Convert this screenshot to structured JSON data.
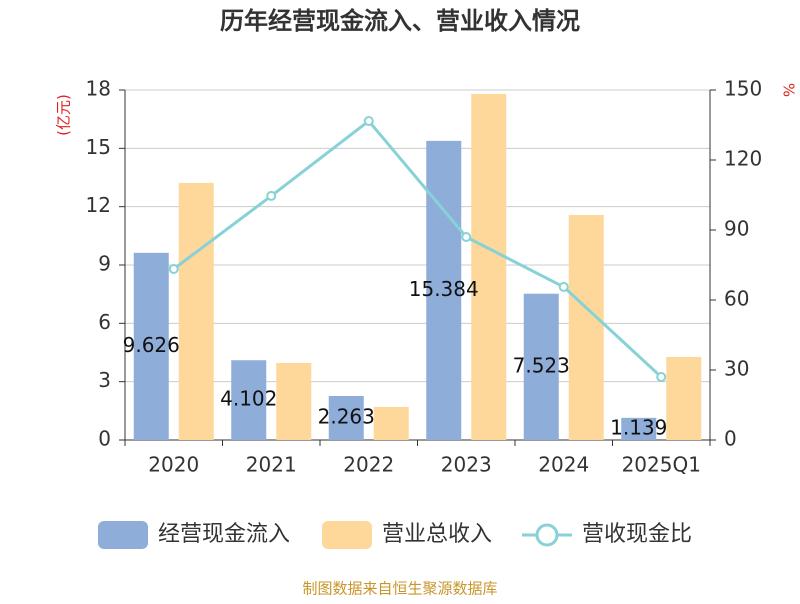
{
  "chart_data": {
    "type": "bar-line",
    "title": "历年经营现金流入、营业收入情况",
    "y_label": "(亿元)",
    "y2_label": "%",
    "categories": [
      "2020",
      "2021",
      "2022",
      "2023",
      "2024",
      "2025Q1"
    ],
    "series": [
      {
        "name": "经营现金流入",
        "type": "bar",
        "color": "#8eadd9",
        "values": [
          9.626,
          4.102,
          2.263,
          15.384,
          7.523,
          1.139
        ]
      },
      {
        "name": "营业总收入",
        "type": "bar",
        "color": "#fdd89a",
        "values": [
          13.22,
          3.96,
          1.7,
          17.8,
          11.57,
          4.27
        ]
      },
      {
        "name": "营收现金比",
        "type": "line",
        "axis": "y2",
        "color": "#86d2d6",
        "values": [
          73.3,
          104.6,
          136.7,
          87,
          65.6,
          27
        ]
      }
    ],
    "ylim": [
      0,
      18
    ],
    "yticks": [
      0,
      3,
      6,
      9,
      12,
      15,
      18
    ],
    "y2lim": [
      0,
      150
    ],
    "y2ticks": [
      0,
      30,
      60,
      90,
      120,
      150
    ],
    "grid": true,
    "legend": "bottom",
    "source": "制图数据来自恒生聚源数据库"
  }
}
